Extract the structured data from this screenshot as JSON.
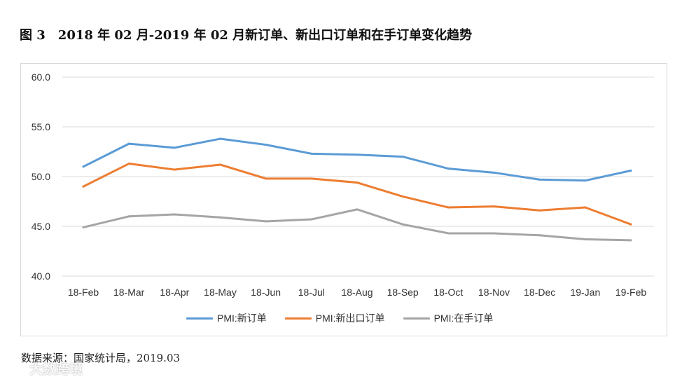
{
  "figure": {
    "number": "图 3",
    "title": "2018 年 02 月-2019 年 02 月新订单、新出口订单和在手订单变化趋势"
  },
  "source_note": "数据来源：国家统计局，2019.03",
  "watermark": {
    "text": "大数跨境",
    "icon": "brand-logo-icon"
  },
  "chart_data": {
    "type": "line",
    "categories": [
      "18-Feb",
      "18-Mar",
      "18-Apr",
      "18-May",
      "18-Jun",
      "18-Jul",
      "18-Aug",
      "18-Sep",
      "18-Oct",
      "18-Nov",
      "18-Dec",
      "19-Jan",
      "19-Feb"
    ],
    "series": [
      {
        "name": "PMI:新订单",
        "color": "#5b9bd5",
        "values": [
          51.0,
          53.3,
          52.9,
          53.8,
          53.2,
          52.3,
          52.2,
          52.0,
          50.8,
          50.4,
          49.7,
          49.6,
          50.6
        ]
      },
      {
        "name": "PMI:新出口订单",
        "color": "#ed7d31",
        "values": [
          49.0,
          51.3,
          50.7,
          51.2,
          49.8,
          49.8,
          49.4,
          48.0,
          46.9,
          47.0,
          46.6,
          46.9,
          45.2
        ]
      },
      {
        "name": "PMI:在手订单",
        "color": "#a5a5a5",
        "values": [
          44.9,
          46.0,
          46.2,
          45.9,
          45.5,
          45.7,
          46.7,
          45.2,
          44.3,
          44.3,
          44.1,
          43.7,
          43.6
        ]
      }
    ],
    "y_ticks": [
      "60.0",
      "55.0",
      "50.0",
      "45.0",
      "40.0"
    ],
    "ylim": [
      40,
      60
    ],
    "grid": true,
    "legend_position": "bottom"
  }
}
